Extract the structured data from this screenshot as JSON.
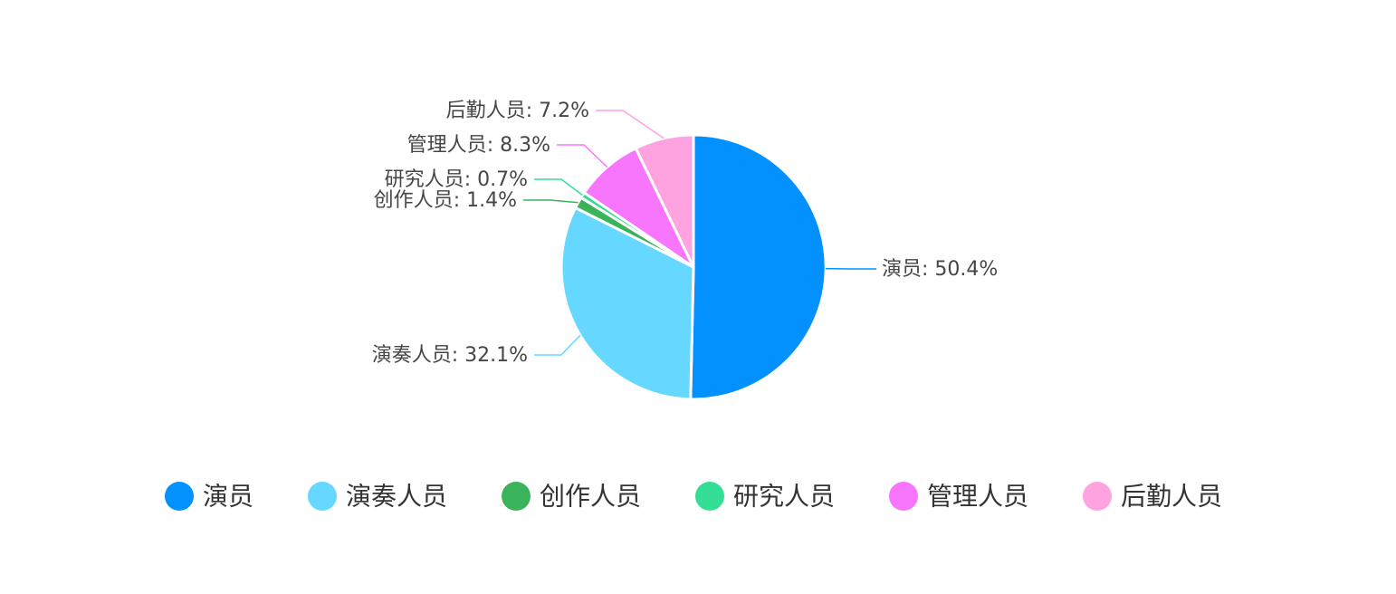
{
  "chart_data": {
    "type": "pie",
    "categories": [
      "演员",
      "演奏人员",
      "创作人员",
      "研究人员",
      "管理人员",
      "后勤人员"
    ],
    "values": [
      50.4,
      32.1,
      1.4,
      0.7,
      8.3,
      7.2
    ],
    "unit": "%",
    "colors": [
      "#0391FF",
      "#66D8FF",
      "#3BB35A",
      "#34DE97",
      "#F876FE",
      "#FFA2E0"
    ],
    "start_angle": "top, clockwise",
    "labels": "outside with leader lines",
    "legend": {
      "position": "bottom",
      "marker": "circle"
    }
  }
}
